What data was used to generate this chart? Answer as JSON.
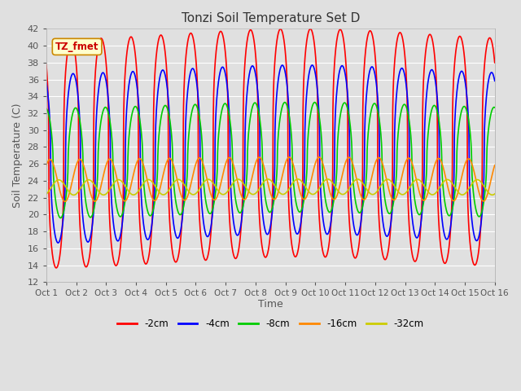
{
  "title": "Tonzi Soil Temperature Set D",
  "xlabel": "Time",
  "ylabel": "Soil Temperature (C)",
  "ylim": [
    12,
    42
  ],
  "yticks": [
    12,
    14,
    16,
    18,
    20,
    22,
    24,
    26,
    28,
    30,
    32,
    34,
    36,
    38,
    40,
    42
  ],
  "xtick_labels": [
    "Oct 1",
    "Oct 2",
    "Oct 3",
    "Oct 4",
    "Oct 5",
    "Oct 6",
    "Oct 7",
    "Oct 8",
    "Oct 9",
    "Oct 10",
    "Oct 11",
    "Oct 12",
    "Oct 13",
    "Oct 14",
    "Oct 15",
    "Oct 16"
  ],
  "annotation_text": "TZ_fmet",
  "series_names": [
    "-2cm",
    "-4cm",
    "-8cm",
    "-16cm",
    "-32cm"
  ],
  "series_colors": [
    "#ff0000",
    "#0000ff",
    "#00cc00",
    "#ff8800",
    "#cccc00"
  ],
  "series_linewidths": [
    1.2,
    1.2,
    1.2,
    1.2,
    1.2
  ],
  "legend_colors": [
    "#ff0000",
    "#0000ff",
    "#00cc00",
    "#ff8800",
    "#cccc00"
  ],
  "legend_labels": [
    "-2cm",
    "-4cm",
    "-8cm",
    "-16cm",
    "-32cm"
  ],
  "background_color": "#e0e0e0",
  "plot_bg_color": "#e0e0e0",
  "grid_color": "#ffffff",
  "n_days": 15,
  "points_per_day": 144,
  "amplitudes": [
    13.5,
    10.0,
    6.5,
    2.5,
    0.9
  ],
  "mean_temps": [
    27.0,
    26.5,
    26.0,
    24.0,
    23.2
  ],
  "peak_hour": [
    14.0,
    15.5,
    17.5,
    21.0,
    28.0
  ],
  "sharpness": [
    0.35,
    0.45,
    0.55,
    1.0,
    1.0
  ],
  "trend_amp": [
    1.5,
    1.2,
    0.8,
    0.3,
    0.1
  ],
  "trend_peak_day": [
    8.5,
    8.5,
    8.5,
    8.5,
    8.5
  ]
}
